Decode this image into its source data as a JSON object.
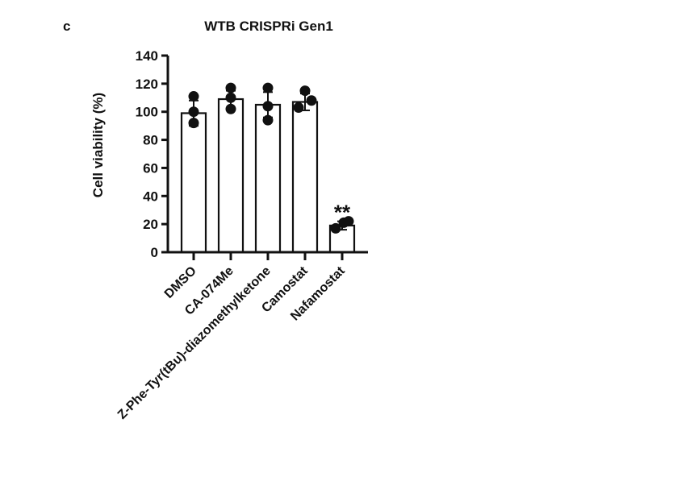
{
  "panel_label": "c",
  "chart_data": {
    "type": "bar",
    "title": "WTB CRISPRi Gen1",
    "xlabel": "",
    "ylabel": "Cell viability (%)",
    "ylim": [
      0,
      140
    ],
    "yticks": [
      0,
      20,
      40,
      60,
      80,
      100,
      120,
      140
    ],
    "grid": false,
    "categories": [
      "DMSO",
      "CA-074Me",
      "Z-Phe-Tyr(tBu)-diazomethylketone",
      "Camostat",
      "Nafamostat"
    ],
    "values": [
      99,
      109,
      105,
      107,
      19
    ],
    "error_sd": [
      9,
      6,
      9,
      6,
      3
    ],
    "points": [
      [
        111,
        100,
        92
      ],
      [
        117,
        110,
        102
      ],
      [
        117,
        104,
        94
      ],
      [
        115,
        103,
        108
      ],
      [
        17,
        21,
        22
      ]
    ],
    "annotations": [
      {
        "category": "Nafamostat",
        "text": "**"
      }
    ],
    "colors": {
      "bar_fill": "#ffffff",
      "bar_stroke": "#111111",
      "point": "#111111",
      "axis": "#111111"
    }
  }
}
